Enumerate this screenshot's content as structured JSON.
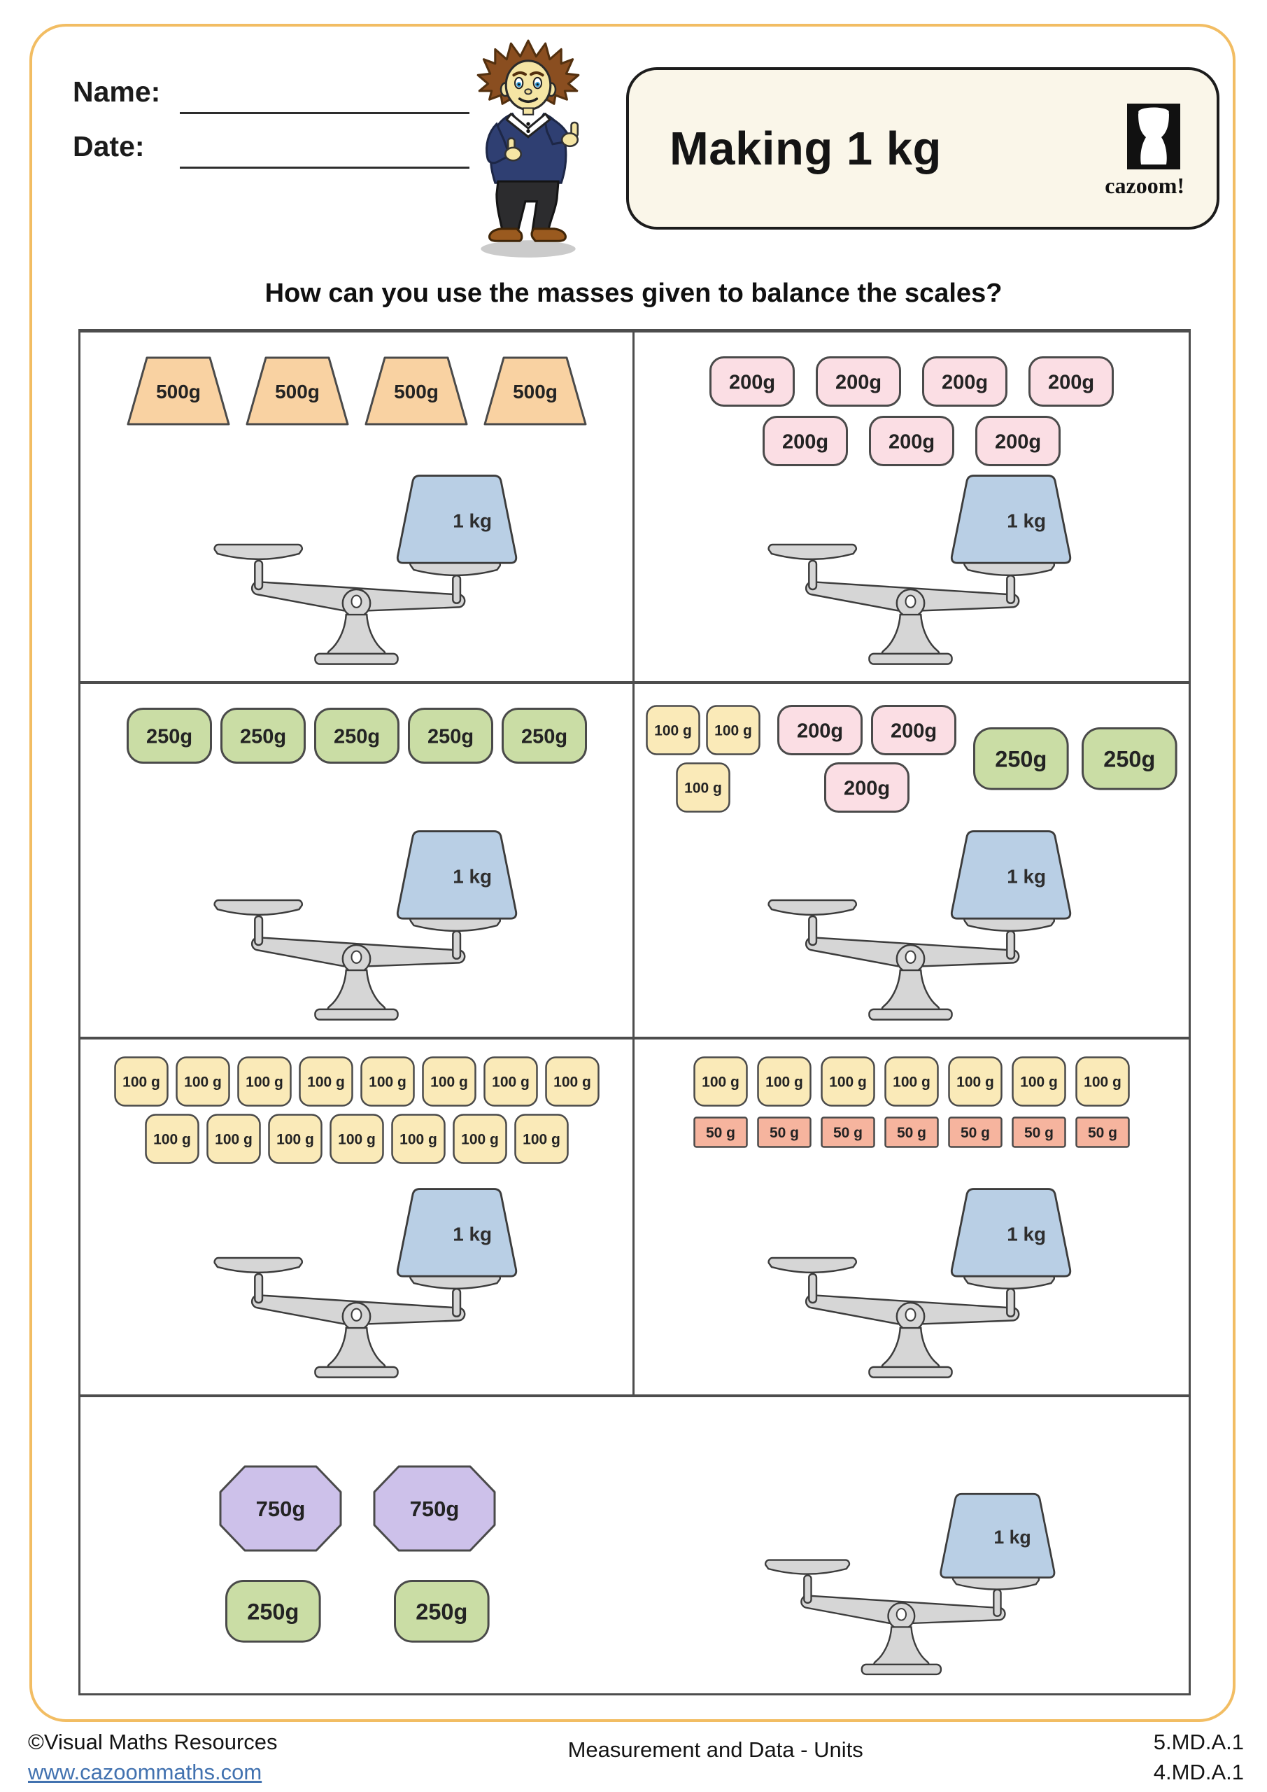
{
  "header": {
    "name_label": "Name:",
    "date_label": "Date:",
    "title": "Making 1 kg",
    "logo_text": "cazoom!",
    "question": "How can you use the masses given to balance the scales?"
  },
  "scale": {
    "pan_weight_label": "1 kg"
  },
  "problems": [
    {
      "layout": "col",
      "groups": [
        {
          "kind": "w500",
          "gap": 20,
          "rows": [
            [
              "500g",
              "500g",
              "500g",
              "500g"
            ]
          ]
        }
      ]
    },
    {
      "layout": "col",
      "groups": [
        {
          "kind": "w200",
          "gap": 30,
          "row_gap": 13,
          "rows": [
            [
              "200g",
              "200g",
              "200g",
              "200g"
            ],
            [
              "200g",
              "200g",
              "200g"
            ]
          ]
        }
      ]
    },
    {
      "layout": "col",
      "groups": [
        {
          "kind": "w250",
          "gap": 12,
          "rows": [
            [
              "250g",
              "250g",
              "250g",
              "250g",
              "250g"
            ]
          ]
        }
      ]
    },
    {
      "layout": "row",
      "groups": [
        {
          "kind": "w100",
          "gap": 8,
          "row_gap": 10,
          "rows": [
            [
              "100 g",
              "100 g"
            ],
            [
              "100 g"
            ]
          ]
        },
        {
          "kind": "w200",
          "gap": 12,
          "row_gap": 10,
          "rows": [
            [
              "200g",
              "200g"
            ],
            [
              "200g"
            ]
          ]
        },
        {
          "kind": "w250",
          "gap": 18,
          "size": 1.12,
          "center": true,
          "rows": [
            [
              "250g",
              "250g"
            ]
          ]
        }
      ]
    },
    {
      "layout": "col",
      "groups": [
        {
          "kind": "w100",
          "gap": 10,
          "row_gap": 10,
          "rows": [
            [
              "100 g",
              "100 g",
              "100 g",
              "100 g",
              "100 g",
              "100 g",
              "100 g",
              "100 g"
            ],
            [
              "100 g",
              "100 g",
              "100 g",
              "100 g",
              "100 g",
              "100 g",
              "100 g"
            ]
          ]
        }
      ]
    },
    {
      "layout": "col",
      "group_gap": 14,
      "groups": [
        {
          "kind": "w100",
          "gap": 13,
          "rows": [
            [
              "100 g",
              "100 g",
              "100 g",
              "100 g",
              "100 g",
              "100 g",
              "100 g"
            ]
          ]
        },
        {
          "kind": "w50",
          "gap": 13,
          "rows": [
            [
              "50 g",
              "50 g",
              "50 g",
              "50 g",
              "50 g",
              "50 g",
              "50 g"
            ]
          ]
        }
      ]
    },
    {
      "layout": "col",
      "group_gap": 40,
      "groups": [
        {
          "kind": "w750",
          "gap": 44,
          "rows": [
            [
              "750g",
              "750g"
            ]
          ]
        },
        {
          "kind": "w250",
          "gap": 104,
          "size": 1.12,
          "rows": [
            [
              "250g",
              "250g"
            ]
          ]
        }
      ]
    }
  ],
  "footer": {
    "copyright": "©Visual Maths Resources",
    "website": "www.cazoommaths.com",
    "center_text": "Measurement and Data - Units",
    "standard_codes": [
      "5.MD.A.1",
      "4.MD.A.1"
    ]
  },
  "colors": {
    "page_border": "#f2bd63",
    "title_box_bg": "#faf6e9",
    "table_border": "#4d4d4d",
    "link": "#4272b0",
    "weight_stroke": "#4a4a4a",
    "weight_text": "#232323",
    "c500": "#f9d2a2",
    "c200": "#fbdee4",
    "c250": "#cadda5",
    "c100": "#faeab8",
    "c50": "#f6b49e",
    "c750": "#cdc1ea",
    "c1kg": "#b9cfe5",
    "scale_fill": "#d6d6d6",
    "scale_stroke": "#3c3c3c"
  }
}
